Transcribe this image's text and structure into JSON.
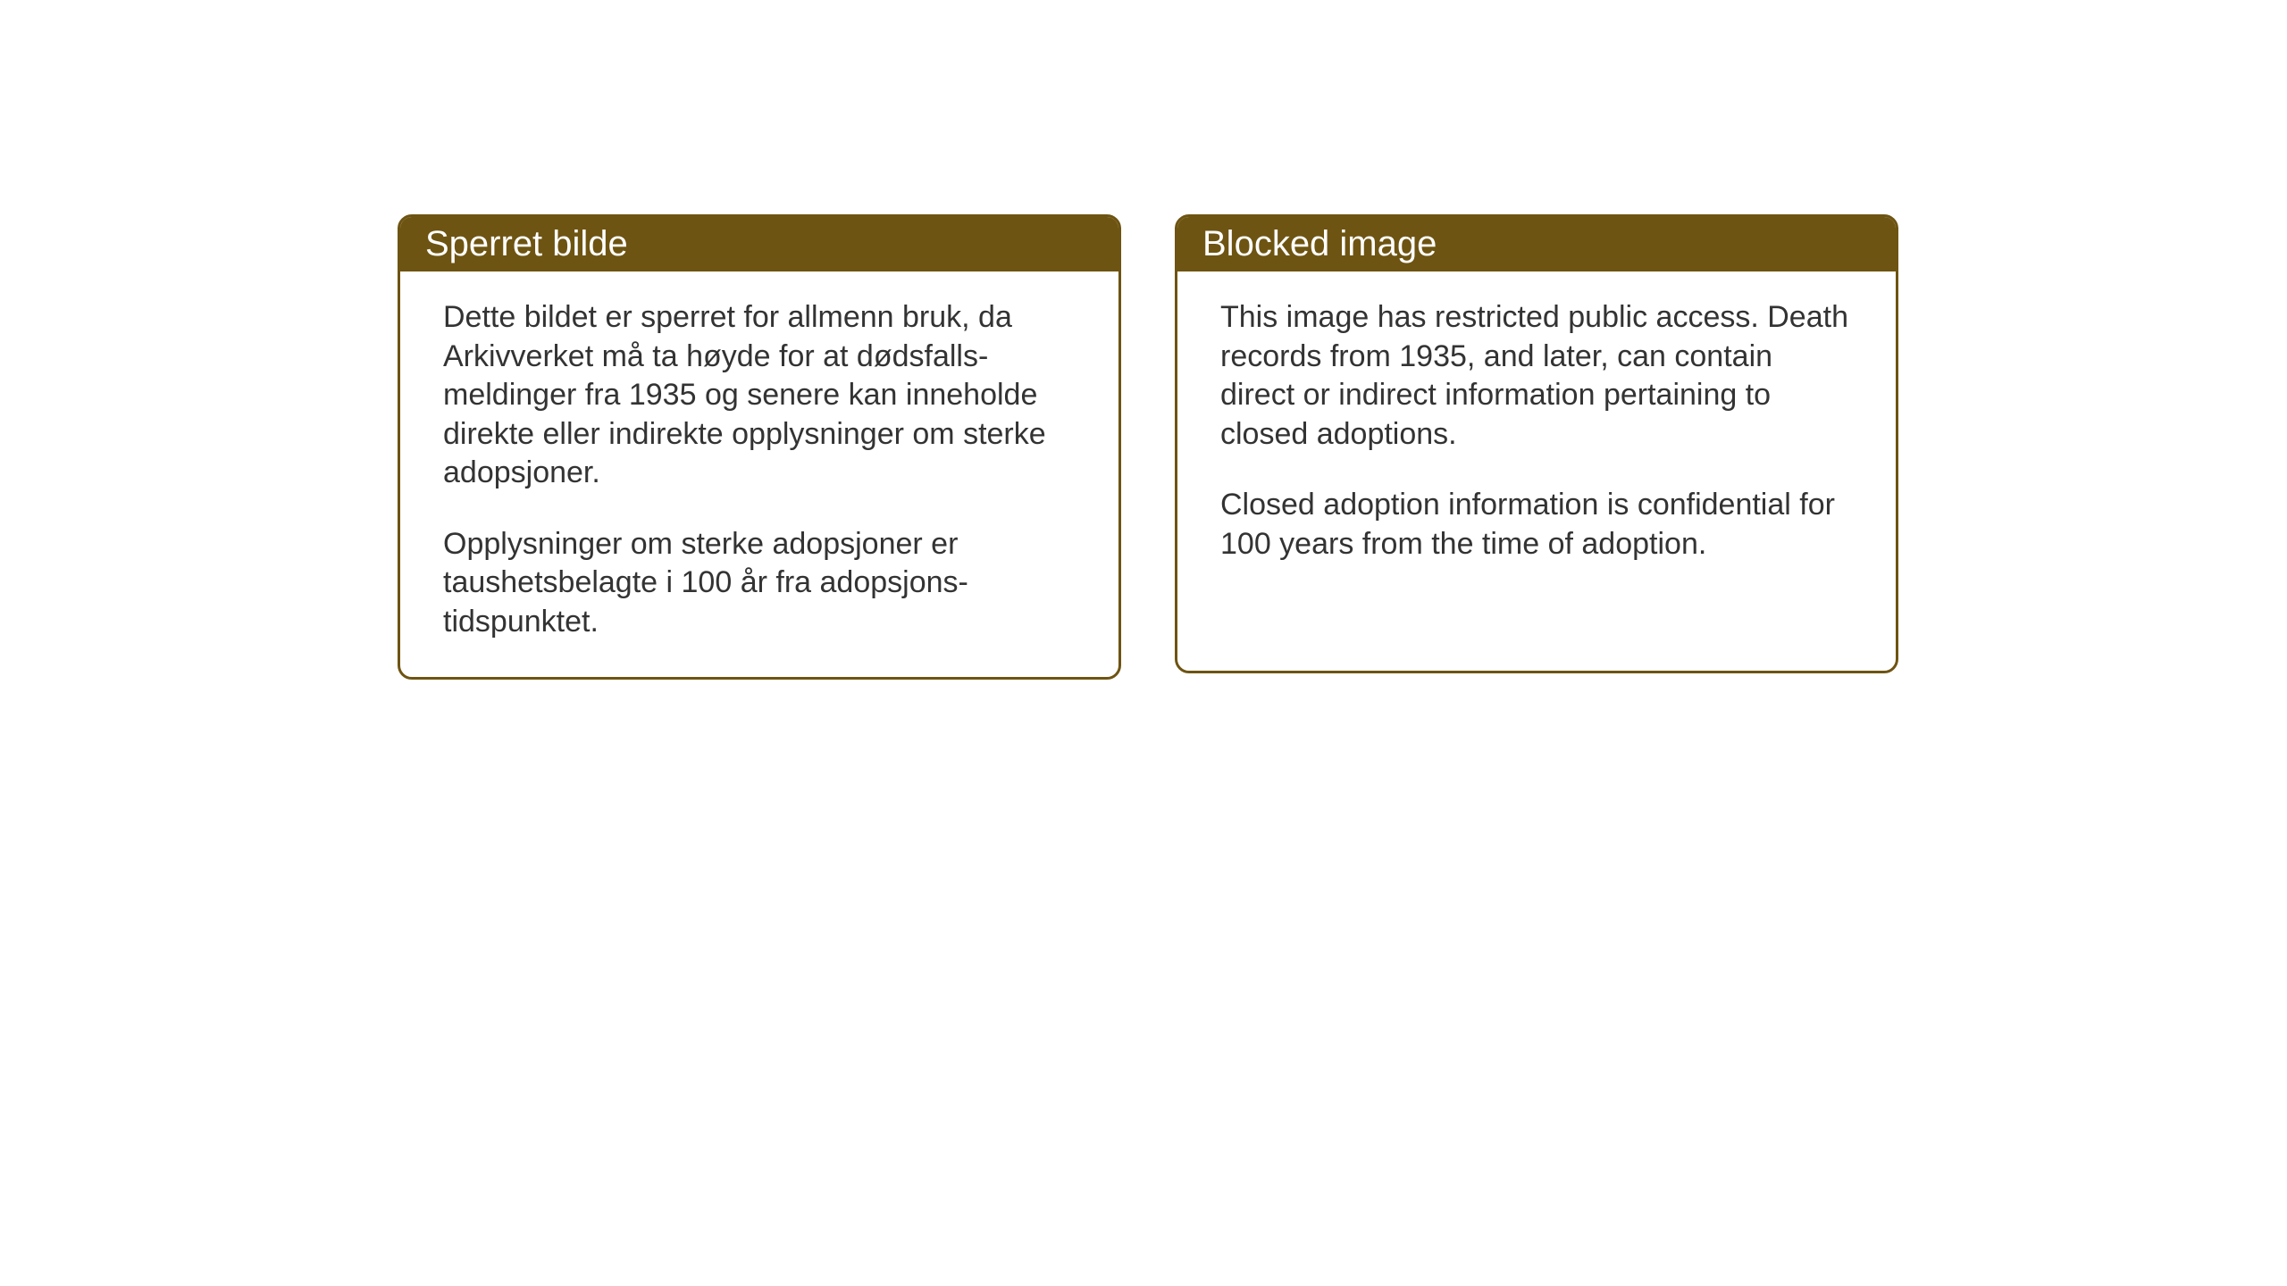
{
  "layout": {
    "background_color": "#ffffff",
    "card_border_color": "#6e5412",
    "card_header_bg": "#6e5412",
    "card_header_text_color": "#ffffff",
    "card_body_text_color": "#333333",
    "card_border_radius": 16,
    "card_border_width": 3,
    "header_fontsize": 40,
    "body_fontsize": 34
  },
  "cards": {
    "left": {
      "title": "Sperret bilde",
      "paragraph1": "Dette bildet er sperret for allmenn bruk, da Arkivverket må ta høyde for at dødsfalls-meldinger fra 1935 og senere kan inneholde direkte eller indirekte opplysninger om sterke adopsjoner.",
      "paragraph2": "Opplysninger om sterke adopsjoner er taushetsbelagte i 100 år fra adopsjons-tidspunktet."
    },
    "right": {
      "title": "Blocked image",
      "paragraph1": "This image has restricted public access. Death records from 1935, and later, can contain direct or indirect information pertaining to closed adoptions.",
      "paragraph2": "Closed adoption information is confidential for 100 years from the time of adoption."
    }
  }
}
